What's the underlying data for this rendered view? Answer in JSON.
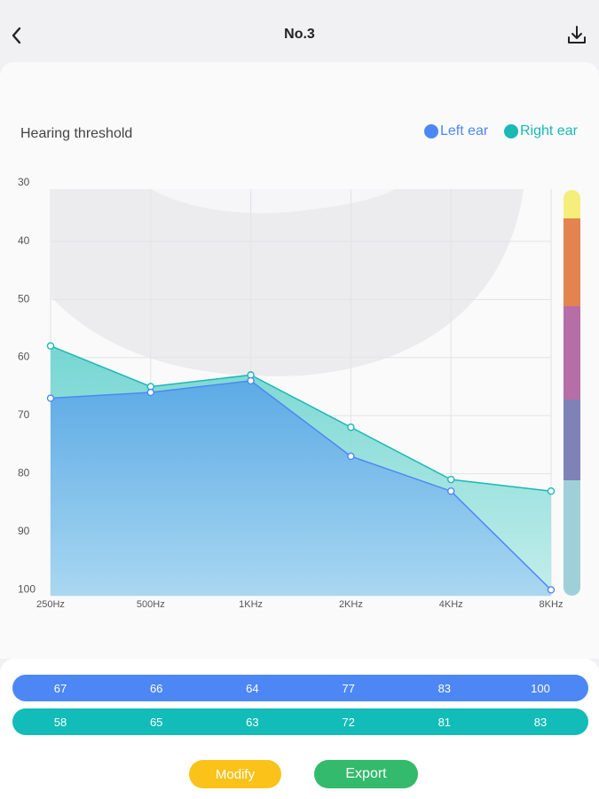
{
  "header": {
    "title": "No.3"
  },
  "chart_title": "Hearing threshold",
  "legend": {
    "left": "Left ear",
    "right": "Right ear"
  },
  "colors": {
    "left": "#4d87f5",
    "right": "#19b9b5",
    "scale": [
      "#f6ee7a",
      "#e3834f",
      "#b56ea6",
      "#7f82b7",
      "#a0d0d7"
    ]
  },
  "chart_data": {
    "type": "area",
    "categories": [
      "250Hz",
      "500Hz",
      "1KHz",
      "2KHz",
      "4KHz",
      "8KHz"
    ],
    "series": [
      {
        "name": "Left ear",
        "values": [
          67,
          66,
          64,
          77,
          83,
          100
        ]
      },
      {
        "name": "Right ear",
        "values": [
          58,
          65,
          63,
          72,
          81,
          83
        ]
      }
    ],
    "yticks": [
      30,
      40,
      50,
      60,
      70,
      80,
      90,
      100
    ],
    "ylim": [
      31,
      101
    ],
    "y_inverted": true,
    "grid": true,
    "legend_position": "top-right"
  },
  "buttons": {
    "modify": "Modify",
    "export": "Export"
  }
}
